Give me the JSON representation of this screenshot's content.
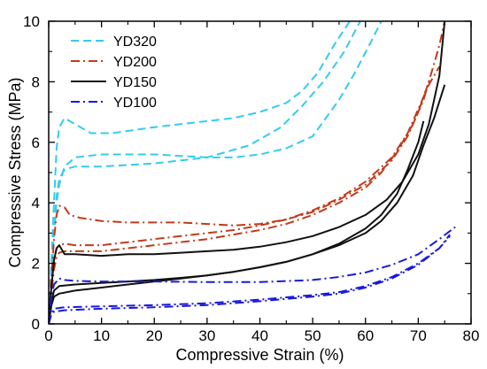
{
  "chart_data": {
    "type": "line",
    "xlabel": "Compressive Strain (%)",
    "ylabel": "Compressive Stress (MPa)",
    "xlim": [
      0,
      80
    ],
    "ylim": [
      0,
      10
    ],
    "xticks": [
      "0",
      "10",
      "20",
      "30",
      "40",
      "50",
      "60",
      "70",
      "80"
    ],
    "yticks": [
      "0",
      "2",
      "4",
      "6",
      "8",
      "10"
    ],
    "grid": false,
    "legend_position": "top-left",
    "series": [
      {
        "name": "YD320",
        "color": "#33ccee",
        "dash": "dash",
        "curves": [
          [
            [
              0,
              0
            ],
            [
              0.5,
              2.0
            ],
            [
              1,
              4.0
            ],
            [
              1.5,
              5.8
            ],
            [
              2,
              6.5
            ],
            [
              3,
              6.8
            ],
            [
              5,
              6.6
            ],
            [
              8,
              6.3
            ],
            [
              12,
              6.3
            ],
            [
              16,
              6.4
            ],
            [
              20,
              6.5
            ],
            [
              25,
              6.6
            ],
            [
              30,
              6.7
            ],
            [
              35,
              6.8
            ],
            [
              40,
              7.0
            ],
            [
              45,
              7.3
            ],
            [
              48,
              7.7
            ],
            [
              51,
              8.3
            ],
            [
              54,
              9.2
            ],
            [
              57,
              10.0
            ]
          ],
          [
            [
              0,
              0
            ],
            [
              0.5,
              1.5
            ],
            [
              1,
              3.0
            ],
            [
              1.5,
              4.0
            ],
            [
              2,
              4.6
            ],
            [
              3,
              5.2
            ],
            [
              5,
              5.5
            ],
            [
              10,
              5.6
            ],
            [
              15,
              5.6
            ],
            [
              20,
              5.6
            ],
            [
              25,
              5.55
            ],
            [
              30,
              5.5
            ],
            [
              35,
              5.5
            ],
            [
              40,
              5.6
            ],
            [
              45,
              5.8
            ],
            [
              50,
              6.2
            ],
            [
              55,
              7.4
            ],
            [
              58,
              8.3
            ],
            [
              61,
              9.3
            ],
            [
              63,
              10.0
            ]
          ],
          [
            [
              0,
              0
            ],
            [
              0.5,
              1.6
            ],
            [
              1,
              3.2
            ],
            [
              1.5,
              4.2
            ],
            [
              2,
              4.8
            ],
            [
              3,
              5.1
            ],
            [
              5,
              5.2
            ],
            [
              10,
              5.2
            ],
            [
              20,
              5.3
            ],
            [
              30,
              5.5
            ],
            [
              38,
              5.9
            ],
            [
              44,
              6.5
            ],
            [
              48,
              7.2
            ],
            [
              52,
              8.0
            ],
            [
              56,
              9.0
            ],
            [
              59,
              10.0
            ]
          ]
        ]
      },
      {
        "name": "YD200",
        "color": "#c23a1a",
        "dash": "dashdot",
        "curves": [
          [
            [
              0,
              0
            ],
            [
              0.5,
              1.5
            ],
            [
              1,
              2.8
            ],
            [
              1.5,
              3.6
            ],
            [
              2,
              3.9
            ],
            [
              3,
              3.85
            ],
            [
              4,
              3.6
            ],
            [
              6,
              3.5
            ],
            [
              10,
              3.4
            ],
            [
              15,
              3.35
            ],
            [
              20,
              3.35
            ],
            [
              25,
              3.35
            ],
            [
              30,
              3.3
            ],
            [
              35,
              3.25
            ],
            [
              40,
              3.3
            ],
            [
              45,
              3.45
            ],
            [
              50,
              3.7
            ],
            [
              55,
              4.1
            ],
            [
              60,
              4.6
            ],
            [
              65,
              5.4
            ],
            [
              68,
              6.2
            ],
            [
              70,
              7.0
            ],
            [
              72,
              8.0
            ],
            [
              74,
              9.2
            ],
            [
              75,
              10.0
            ]
          ],
          [
            [
              0,
              0
            ],
            [
              0.5,
              1.2
            ],
            [
              1,
              2.1
            ],
            [
              1.5,
              2.5
            ],
            [
              2,
              2.6
            ],
            [
              3,
              2.65
            ],
            [
              5,
              2.6
            ],
            [
              10,
              2.6
            ],
            [
              15,
              2.7
            ],
            [
              20,
              2.8
            ],
            [
              25,
              2.9
            ],
            [
              30,
              3.0
            ],
            [
              35,
              3.1
            ],
            [
              40,
              3.25
            ],
            [
              45,
              3.45
            ],
            [
              50,
              3.75
            ],
            [
              55,
              4.15
            ],
            [
              60,
              4.7
            ],
            [
              65,
              5.5
            ],
            [
              68,
              6.3
            ],
            [
              70,
              7.1
            ],
            [
              72,
              7.9
            ],
            [
              74,
              8.5
            ]
          ],
          [
            [
              0,
              0
            ],
            [
              0.5,
              1.0
            ],
            [
              1,
              1.8
            ],
            [
              1.5,
              2.2
            ],
            [
              2,
              2.35
            ],
            [
              3,
              2.4
            ],
            [
              5,
              2.4
            ],
            [
              10,
              2.4
            ],
            [
              15,
              2.5
            ],
            [
              20,
              2.6
            ],
            [
              25,
              2.7
            ],
            [
              30,
              2.8
            ],
            [
              35,
              2.95
            ],
            [
              40,
              3.1
            ],
            [
              45,
              3.3
            ],
            [
              50,
              3.6
            ],
            [
              55,
              4.0
            ],
            [
              60,
              4.5
            ],
            [
              63,
              5.0
            ],
            [
              66,
              5.7
            ],
            [
              69,
              6.6
            ],
            [
              71,
              7.4
            ],
            [
              72,
              8.0
            ]
          ]
        ]
      },
      {
        "name": "YD150",
        "color": "#111111",
        "dash": "solid",
        "curves": [
          [
            [
              0,
              0
            ],
            [
              0.5,
              1.2
            ],
            [
              1,
              2.1
            ],
            [
              1.5,
              2.5
            ],
            [
              2,
              2.6
            ],
            [
              3,
              2.3
            ],
            [
              5,
              2.3
            ],
            [
              10,
              2.25
            ],
            [
              15,
              2.3
            ],
            [
              20,
              2.3
            ],
            [
              25,
              2.35
            ],
            [
              30,
              2.4
            ],
            [
              35,
              2.45
            ],
            [
              40,
              2.55
            ],
            [
              45,
              2.7
            ],
            [
              50,
              2.9
            ],
            [
              55,
              3.2
            ],
            [
              60,
              3.6
            ],
            [
              64,
              4.1
            ],
            [
              67,
              4.7
            ],
            [
              70,
              5.6
            ],
            [
              72,
              6.6
            ],
            [
              74,
              8.2
            ],
            [
              75,
              10.0
            ]
          ],
          [
            [
              0,
              0
            ],
            [
              0.5,
              0.6
            ],
            [
              1,
              0.9
            ],
            [
              2,
              1.0
            ],
            [
              5,
              1.1
            ],
            [
              10,
              1.2
            ],
            [
              15,
              1.3
            ],
            [
              20,
              1.4
            ],
            [
              25,
              1.5
            ],
            [
              30,
              1.6
            ],
            [
              35,
              1.72
            ],
            [
              40,
              1.87
            ],
            [
              45,
              2.05
            ],
            [
              50,
              2.3
            ],
            [
              55,
              2.6
            ],
            [
              60,
              3.0
            ],
            [
              63,
              3.4
            ],
            [
              66,
              4.0
            ],
            [
              69,
              4.9
            ],
            [
              71,
              5.9
            ],
            [
              73,
              6.8
            ],
            [
              75,
              7.9
            ]
          ],
          [
            [
              0,
              0
            ],
            [
              0.5,
              0.7
            ],
            [
              1,
              1.1
            ],
            [
              2,
              1.25
            ],
            [
              5,
              1.3
            ],
            [
              10,
              1.35
            ],
            [
              15,
              1.4
            ],
            [
              20,
              1.45
            ],
            [
              25,
              1.52
            ],
            [
              30,
              1.6
            ],
            [
              35,
              1.72
            ],
            [
              40,
              1.87
            ],
            [
              45,
              2.05
            ],
            [
              50,
              2.3
            ],
            [
              55,
              2.65
            ],
            [
              60,
              3.15
            ],
            [
              63,
              3.6
            ],
            [
              66,
              4.3
            ],
            [
              68,
              5.1
            ],
            [
              70,
              6.0
            ],
            [
              71,
              6.7
            ]
          ]
        ]
      },
      {
        "name": "YD100",
        "color": "#1a1adb",
        "dash": "dashdot",
        "curves": [
          [
            [
              0,
              0
            ],
            [
              0.5,
              0.9
            ],
            [
              1,
              1.3
            ],
            [
              2,
              1.5
            ],
            [
              3,
              1.45
            ],
            [
              5,
              1.42
            ],
            [
              10,
              1.4
            ],
            [
              20,
              1.4
            ],
            [
              30,
              1.38
            ],
            [
              40,
              1.38
            ],
            [
              50,
              1.45
            ],
            [
              55,
              1.55
            ],
            [
              60,
              1.7
            ],
            [
              65,
              1.95
            ],
            [
              70,
              2.3
            ],
            [
              74,
              2.8
            ],
            [
              77,
              3.2
            ]
          ],
          [
            [
              0,
              0
            ],
            [
              0.5,
              0.35
            ],
            [
              1,
              0.5
            ],
            [
              3,
              0.55
            ],
            [
              10,
              0.58
            ],
            [
              20,
              0.62
            ],
            [
              30,
              0.68
            ],
            [
              40,
              0.8
            ],
            [
              50,
              0.95
            ],
            [
              55,
              1.05
            ],
            [
              60,
              1.25
            ],
            [
              65,
              1.55
            ],
            [
              70,
              2.0
            ],
            [
              74,
              2.5
            ],
            [
              76,
              2.95
            ]
          ],
          [
            [
              0,
              0
            ],
            [
              0.5,
              0.3
            ],
            [
              1,
              0.4
            ],
            [
              3,
              0.45
            ],
            [
              10,
              0.5
            ],
            [
              20,
              0.55
            ],
            [
              30,
              0.62
            ],
            [
              40,
              0.75
            ],
            [
              50,
              0.9
            ],
            [
              55,
              1.0
            ],
            [
              60,
              1.2
            ],
            [
              65,
              1.5
            ],
            [
              70,
              1.95
            ],
            [
              74,
              2.5
            ],
            [
              76,
              2.9
            ]
          ]
        ]
      }
    ]
  }
}
